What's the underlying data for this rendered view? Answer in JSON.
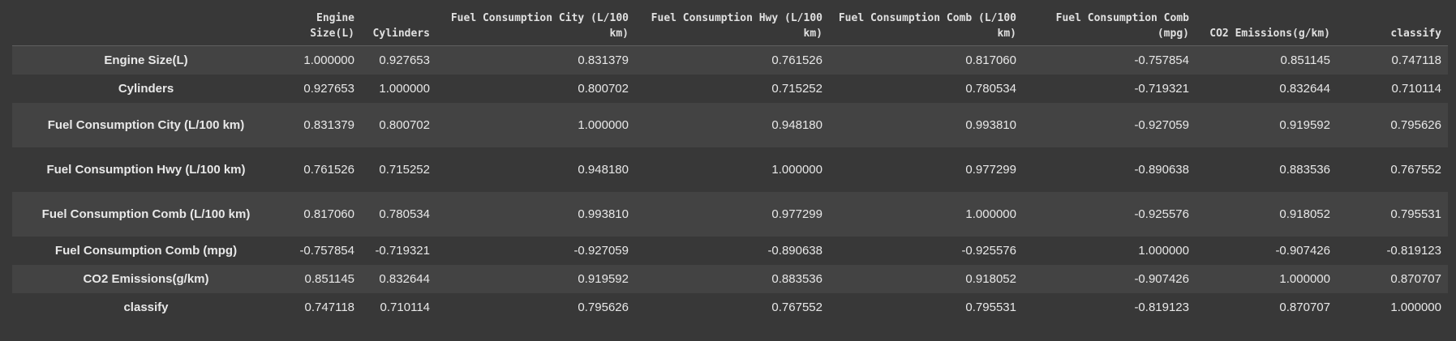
{
  "columns": [
    "",
    "Engine Size(L)",
    "Cylinders",
    "Fuel Consumption City (L/100 km)",
    "Fuel Consumption Hwy (L/100 km)",
    "Fuel Consumption Comb (L/100 km)",
    "Fuel Consumption Comb (mpg)",
    "CO2 Emissions(g/km)",
    "classify"
  ],
  "rows": [
    {
      "label": "Engine Size(L)",
      "values": [
        "1.000000",
        "0.927653",
        "0.831379",
        "0.761526",
        "0.817060",
        "-0.757854",
        "0.851145",
        "0.747118"
      ]
    },
    {
      "label": "Cylinders",
      "values": [
        "0.927653",
        "1.000000",
        "0.800702",
        "0.715252",
        "0.780534",
        "-0.719321",
        "0.832644",
        "0.710114"
      ]
    },
    {
      "label": "Fuel Consumption City (L/100 km)",
      "values": [
        "0.831379",
        "0.800702",
        "1.000000",
        "0.948180",
        "0.993810",
        "-0.927059",
        "0.919592",
        "0.795626"
      ]
    },
    {
      "label": "Fuel Consumption Hwy (L/100 km)",
      "values": [
        "0.761526",
        "0.715252",
        "0.948180",
        "1.000000",
        "0.977299",
        "-0.890638",
        "0.883536",
        "0.767552"
      ]
    },
    {
      "label": "Fuel Consumption Comb (L/100 km)",
      "values": [
        "0.817060",
        "0.780534",
        "0.993810",
        "0.977299",
        "1.000000",
        "-0.925576",
        "0.918052",
        "0.795531"
      ]
    },
    {
      "label": "Fuel Consumption Comb (mpg)",
      "values": [
        "-0.757854",
        "-0.719321",
        "-0.927059",
        "-0.890638",
        "-0.925576",
        "1.000000",
        "-0.907426",
        "-0.819123"
      ]
    },
    {
      "label": "CO2 Emissions(g/km)",
      "values": [
        "0.851145",
        "0.832644",
        "0.919592",
        "0.883536",
        "0.918052",
        "-0.907426",
        "1.000000",
        "0.870707"
      ]
    },
    {
      "label": "classify",
      "values": [
        "0.747118",
        "0.710114",
        "0.795626",
        "0.767552",
        "0.795531",
        "-0.819123",
        "0.870707",
        "1.000000"
      ]
    }
  ]
}
